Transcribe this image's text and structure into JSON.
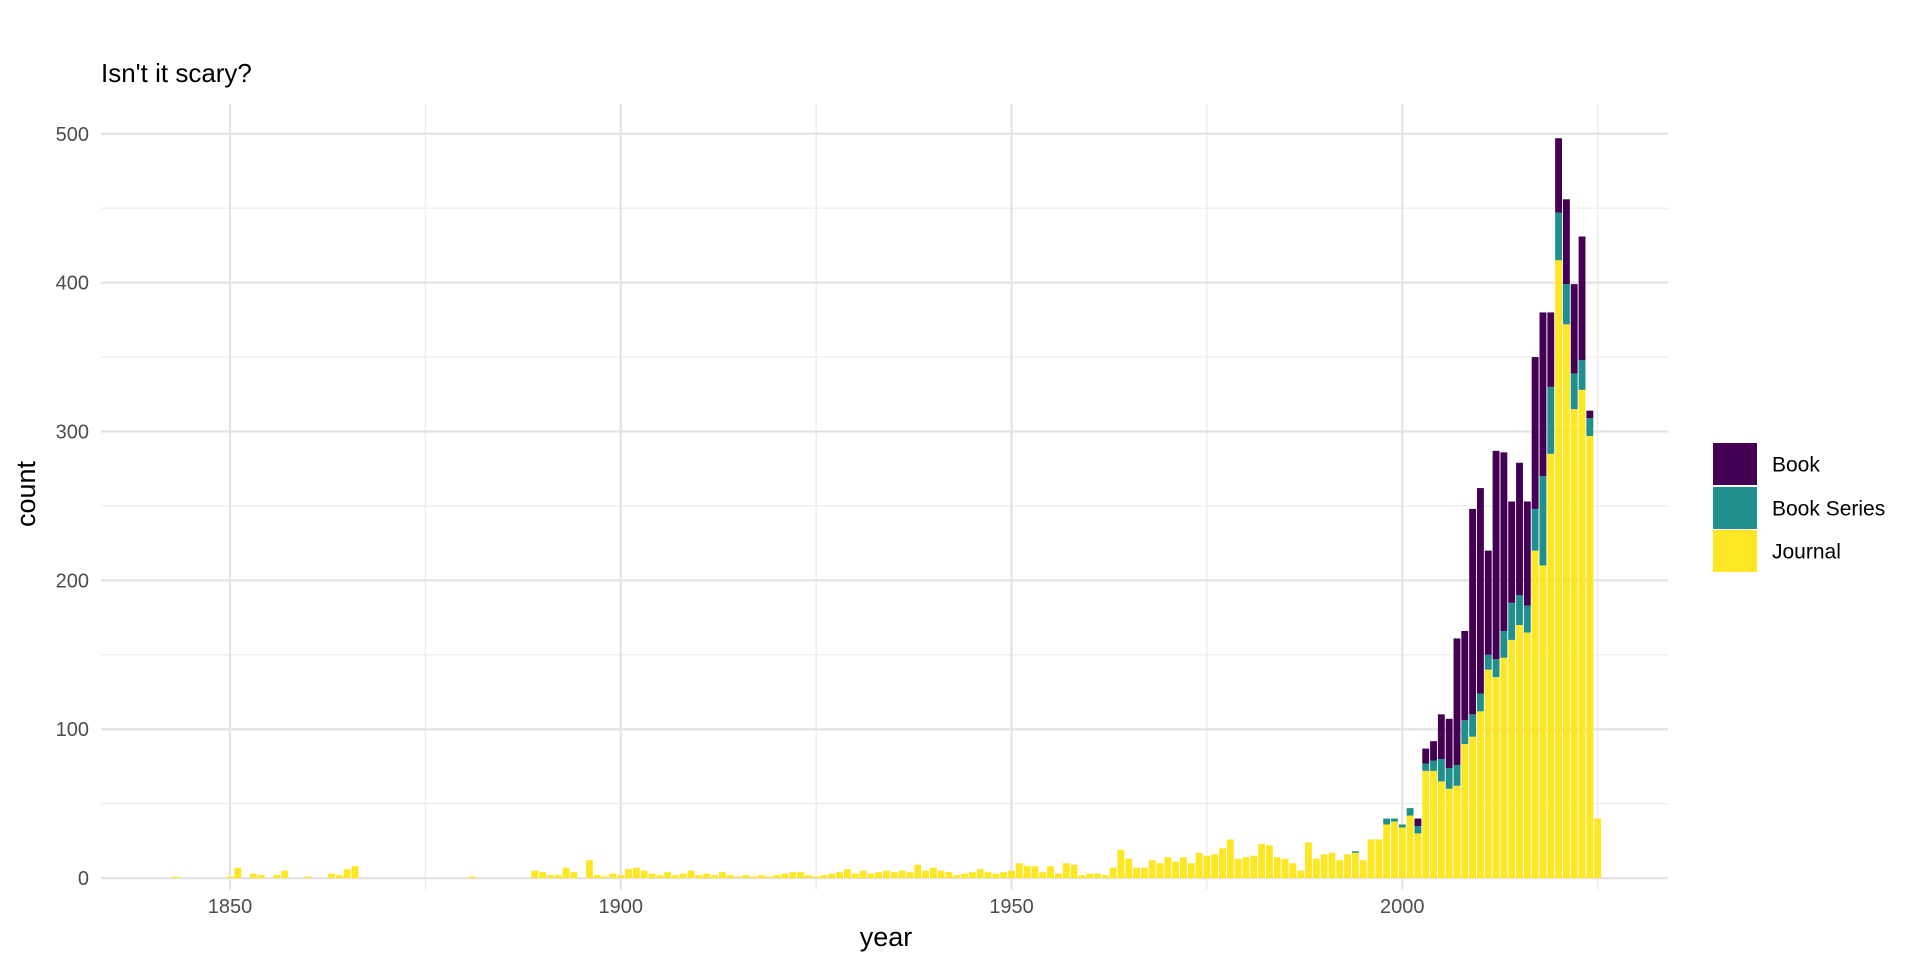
{
  "chart_data": {
    "type": "bar",
    "stacked": true,
    "title": "Isn't it scary?",
    "xlabel": "year",
    "ylabel": "count",
    "xlim": [
      1833.5,
      2034
    ],
    "ylim": [
      -8,
      520
    ],
    "x_ticks": [
      1850,
      1900,
      1950,
      2000
    ],
    "y_ticks": [
      0,
      100,
      200,
      300,
      400,
      500
    ],
    "grid": true,
    "legend_position": "right",
    "series": [
      {
        "name": "Book",
        "color": "#440154",
        "points": [
          [
            2000,
            0
          ],
          [
            2001,
            0
          ],
          [
            2002,
            5
          ],
          [
            2003,
            10
          ],
          [
            2004,
            13
          ],
          [
            2005,
            30
          ],
          [
            2006,
            33
          ],
          [
            2007,
            85
          ],
          [
            2008,
            60
          ],
          [
            2009,
            138
          ],
          [
            2010,
            138
          ],
          [
            2011,
            70
          ],
          [
            2012,
            140
          ],
          [
            2013,
            120
          ],
          [
            2014,
            68
          ],
          [
            2015,
            89
          ],
          [
            2016,
            70
          ],
          [
            2017,
            102
          ],
          [
            2018,
            110
          ],
          [
            2019,
            50
          ],
          [
            2020,
            50
          ],
          [
            2021,
            57
          ],
          [
            2022,
            60
          ],
          [
            2023,
            83
          ],
          [
            2024,
            5
          ]
        ]
      },
      {
        "name": "Book Series",
        "color": "#21908C",
        "points": [
          [
            1994,
            1
          ],
          [
            1998,
            4
          ],
          [
            1999,
            2
          ],
          [
            2000,
            2
          ],
          [
            2001,
            5
          ],
          [
            2002,
            5
          ],
          [
            2003,
            5
          ],
          [
            2004,
            7
          ],
          [
            2005,
            15
          ],
          [
            2006,
            14
          ],
          [
            2007,
            14
          ],
          [
            2008,
            16
          ],
          [
            2009,
            15
          ],
          [
            2010,
            12
          ],
          [
            2011,
            10
          ],
          [
            2012,
            12
          ],
          [
            2013,
            18
          ],
          [
            2014,
            25
          ],
          [
            2015,
            20
          ],
          [
            2016,
            18
          ],
          [
            2017,
            28
          ],
          [
            2018,
            60
          ],
          [
            2019,
            45
          ],
          [
            2020,
            32
          ],
          [
            2021,
            27
          ],
          [
            2022,
            24
          ],
          [
            2023,
            20
          ],
          [
            2024,
            12
          ]
        ]
      },
      {
        "name": "Journal",
        "color": "#FDE725",
        "points": [
          [
            1843,
            1
          ],
          [
            1850,
            1
          ],
          [
            1851,
            7
          ],
          [
            1853,
            3
          ],
          [
            1854,
            2
          ],
          [
            1856,
            2
          ],
          [
            1857,
            5
          ],
          [
            1860,
            1
          ],
          [
            1863,
            3
          ],
          [
            1864,
            2
          ],
          [
            1865,
            6
          ],
          [
            1866,
            8
          ],
          [
            1881,
            1
          ],
          [
            1889,
            5
          ],
          [
            1890,
            4
          ],
          [
            1891,
            2
          ],
          [
            1892,
            2
          ],
          [
            1893,
            7
          ],
          [
            1894,
            4
          ],
          [
            1896,
            12
          ],
          [
            1897,
            2
          ],
          [
            1898,
            1
          ],
          [
            1899,
            3
          ],
          [
            1900,
            2
          ],
          [
            1901,
            6
          ],
          [
            1902,
            7
          ],
          [
            1903,
            5
          ],
          [
            1904,
            3
          ],
          [
            1905,
            2
          ],
          [
            1906,
            4
          ],
          [
            1907,
            2
          ],
          [
            1908,
            3
          ],
          [
            1909,
            5
          ],
          [
            1910,
            2
          ],
          [
            1911,
            3
          ],
          [
            1912,
            2
          ],
          [
            1913,
            4
          ],
          [
            1914,
            2
          ],
          [
            1915,
            1
          ],
          [
            1916,
            2
          ],
          [
            1917,
            1
          ],
          [
            1918,
            2
          ],
          [
            1919,
            1
          ],
          [
            1920,
            2
          ],
          [
            1921,
            3
          ],
          [
            1922,
            4
          ],
          [
            1923,
            4
          ],
          [
            1924,
            2
          ],
          [
            1925,
            1
          ],
          [
            1926,
            2
          ],
          [
            1927,
            3
          ],
          [
            1928,
            4
          ],
          [
            1929,
            6
          ],
          [
            1930,
            3
          ],
          [
            1931,
            5
          ],
          [
            1932,
            3
          ],
          [
            1933,
            4
          ],
          [
            1934,
            5
          ],
          [
            1935,
            4
          ],
          [
            1936,
            5
          ],
          [
            1937,
            4
          ],
          [
            1938,
            9
          ],
          [
            1939,
            5
          ],
          [
            1940,
            7
          ],
          [
            1941,
            5
          ],
          [
            1942,
            4
          ],
          [
            1943,
            2
          ],
          [
            1944,
            3
          ],
          [
            1945,
            4
          ],
          [
            1946,
            6
          ],
          [
            1947,
            4
          ],
          [
            1948,
            3
          ],
          [
            1949,
            4
          ],
          [
            1950,
            5
          ],
          [
            1951,
            10
          ],
          [
            1952,
            8
          ],
          [
            1953,
            8
          ],
          [
            1954,
            4
          ],
          [
            1955,
            8
          ],
          [
            1956,
            3
          ],
          [
            1957,
            10
          ],
          [
            1958,
            9
          ],
          [
            1959,
            2
          ],
          [
            1960,
            3
          ],
          [
            1961,
            3
          ],
          [
            1962,
            2
          ],
          [
            1963,
            7
          ],
          [
            1964,
            19
          ],
          [
            1965,
            13
          ],
          [
            1966,
            7
          ],
          [
            1967,
            7
          ],
          [
            1968,
            12
          ],
          [
            1969,
            10
          ],
          [
            1970,
            14
          ],
          [
            1971,
            11
          ],
          [
            1972,
            14
          ],
          [
            1973,
            10
          ],
          [
            1974,
            17
          ],
          [
            1975,
            15
          ],
          [
            1976,
            16
          ],
          [
            1977,
            20
          ],
          [
            1978,
            26
          ],
          [
            1979,
            13
          ],
          [
            1980,
            14
          ],
          [
            1981,
            15
          ],
          [
            1982,
            23
          ],
          [
            1983,
            22
          ],
          [
            1984,
            14
          ],
          [
            1985,
            13
          ],
          [
            1986,
            10
          ],
          [
            1987,
            5
          ],
          [
            1988,
            24
          ],
          [
            1989,
            13
          ],
          [
            1990,
            16
          ],
          [
            1991,
            17
          ],
          [
            1992,
            12
          ],
          [
            1993,
            16
          ],
          [
            1994,
            17
          ],
          [
            1995,
            12
          ],
          [
            1996,
            26
          ],
          [
            1997,
            26
          ],
          [
            1998,
            36
          ],
          [
            1999,
            38
          ],
          [
            2000,
            34
          ],
          [
            2001,
            42
          ],
          [
            2002,
            30
          ],
          [
            2003,
            72
          ],
          [
            2004,
            72
          ],
          [
            2005,
            65
          ],
          [
            2006,
            60
          ],
          [
            2007,
            62
          ],
          [
            2008,
            90
          ],
          [
            2009,
            95
          ],
          [
            2010,
            112
          ],
          [
            2011,
            140
          ],
          [
            2012,
            135
          ],
          [
            2013,
            148
          ],
          [
            2014,
            160
          ],
          [
            2015,
            170
          ],
          [
            2016,
            165
          ],
          [
            2017,
            220
          ],
          [
            2018,
            210
          ],
          [
            2019,
            285
          ],
          [
            2020,
            415
          ],
          [
            2021,
            372
          ],
          [
            2022,
            315
          ],
          [
            2023,
            328
          ],
          [
            2024,
            297
          ],
          [
            2025,
            40
          ]
        ]
      }
    ]
  }
}
